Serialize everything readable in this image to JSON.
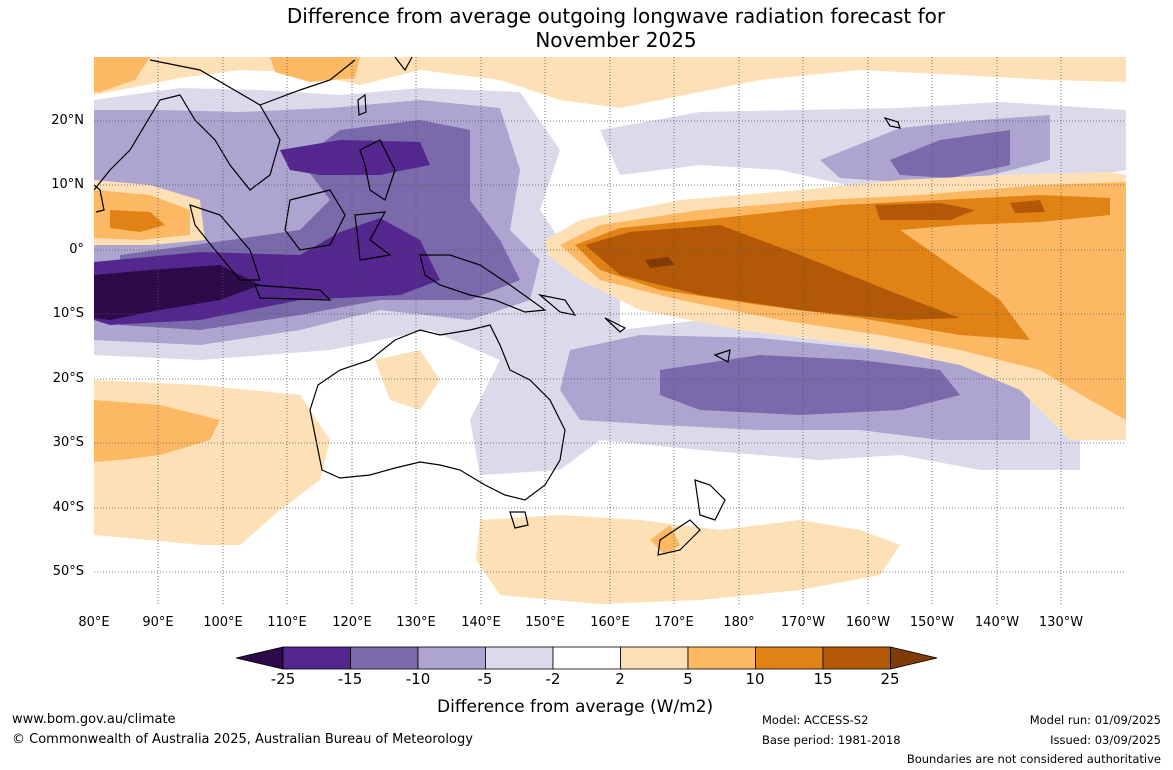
{
  "title_line1": "Difference from average outgoing longwave radiation forecast for",
  "title_line2": "November 2025",
  "lat_labels": [
    "20°N",
    "10°N",
    "0°",
    "10°S",
    "20°S",
    "30°S",
    "40°S",
    "50°S"
  ],
  "lon_labels": [
    "80°E",
    "90°E",
    "100°E",
    "110°E",
    "120°E",
    "130°E",
    "140°E",
    "150°E",
    "160°E",
    "170°E",
    "180°",
    "170°W",
    "160°W",
    "150°W",
    "140°W",
    "130°W"
  ],
  "colorbar": {
    "ticks": [
      "-25",
      "-15",
      "-10",
      "-5",
      "-2",
      "2",
      "5",
      "10",
      "15",
      "25"
    ],
    "colors": [
      "#2d0a4a",
      "#54278f",
      "#7a6aab",
      "#ada4cf",
      "#dadaeb",
      "#ffffff",
      "#fee0b6",
      "#fdb863",
      "#e08214",
      "#b35806",
      "#7f3b08"
    ],
    "label": "Difference from average (W/m2)"
  },
  "footer": {
    "url": "www.bom.gov.au/climate",
    "copyright": "© Commonwealth of Australia 2025, Australian Bureau of Meteorology",
    "model": "Model: ACCESS-S2",
    "base_period": "Base period: 1981-2018",
    "model_run": "Model run: 01/09/2025",
    "issued": "Issued: 03/09/2025",
    "disclaimer": "Boundaries are not considered authoritative"
  }
}
